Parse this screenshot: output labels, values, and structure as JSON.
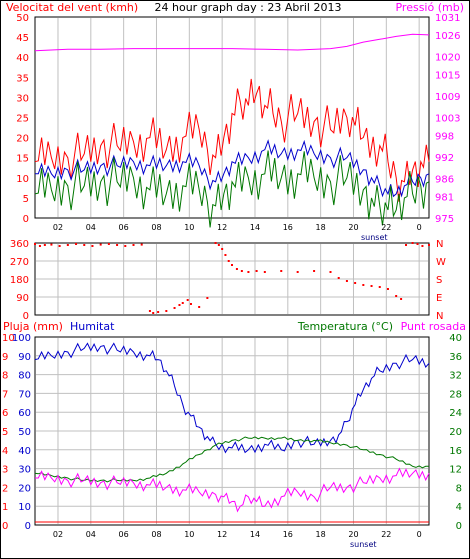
{
  "header": {
    "left_label": "Velocitat del vent (kmh)",
    "title": "24 hour graph day : 23 Abril 2013",
    "right_label": "Pressió (mb)"
  },
  "colors": {
    "red": "#ff0000",
    "blue": "#0000cc",
    "green": "#007700",
    "magenta": "#ff00ff",
    "grid": "#c0c0c0",
    "frame": "#000000",
    "sunset_label": "#000080"
  },
  "x_axis": {
    "tick_labels": [
      "02",
      "04",
      "06",
      "08",
      "10",
      "12",
      "14",
      "16",
      "18",
      "20",
      "22",
      "0"
    ],
    "sunset_label": "sunset"
  },
  "chart_data": [
    {
      "type": "line",
      "name": "wind-pressure",
      "y_ticks": [
        0,
        5,
        10,
        15,
        20,
        25,
        30,
        35,
        40,
        45,
        50
      ],
      "ylim": [
        0,
        50
      ],
      "y2_ticks": [
        975,
        981,
        986,
        992,
        998,
        1003,
        1009,
        1015,
        1020,
        1026,
        1031
      ],
      "y2lim": [
        975,
        1031
      ],
      "series": [
        {
          "name": "gust",
          "x": [
            0,
            1,
            2,
            3,
            4,
            5,
            6,
            7,
            8,
            9,
            10,
            10.5,
            11,
            11.5,
            12,
            12.5,
            13,
            13.5,
            14,
            14.5,
            15,
            16,
            17,
            18,
            19,
            19.5,
            20,
            21,
            21.5,
            22,
            22.5,
            23,
            23.5,
            24
          ],
          "y": [
            14,
            15,
            15,
            16,
            18,
            18,
            19,
            20,
            17,
            20,
            22,
            17,
            15,
            20,
            26,
            29,
            28,
            31,
            28,
            26,
            24,
            26,
            24,
            22,
            25,
            23,
            20,
            18,
            14,
            10,
            9,
            12,
            14,
            14
          ]
        },
        {
          "name": "average",
          "x": [
            0,
            1,
            2,
            3,
            4,
            5,
            6,
            7,
            8,
            9,
            10,
            10.5,
            11,
            11.5,
            12,
            13,
            14,
            15,
            16,
            17,
            18,
            19,
            20,
            20.5,
            21,
            21.5,
            22,
            22.5,
            23,
            23.5,
            24
          ],
          "y": [
            11,
            11,
            12,
            12,
            13,
            13,
            14,
            13,
            13,
            14,
            13,
            10,
            9,
            11,
            14,
            15,
            17,
            16,
            17,
            16,
            15,
            15,
            12,
            10,
            8,
            6,
            6,
            8,
            9,
            10,
            11
          ]
        },
        {
          "name": "lull",
          "x": [
            0,
            1,
            2,
            3,
            4,
            5,
            6,
            7,
            8,
            9,
            10,
            10.5,
            11,
            11.5,
            12,
            13,
            14,
            15,
            16,
            17,
            18,
            19,
            20,
            20.5,
            21,
            21.5,
            22,
            22.5,
            23,
            23.5,
            24
          ],
          "y": [
            6,
            7,
            8,
            8,
            9,
            9,
            10,
            7,
            6,
            8,
            7,
            4,
            3,
            6,
            9,
            10,
            11,
            10,
            11,
            10,
            9,
            10,
            7,
            5,
            3,
            2,
            2,
            5,
            6,
            8,
            9
          ]
        },
        {
          "name": "pressure",
          "axis": "right",
          "x": [
            0,
            2,
            4,
            6,
            8,
            10,
            12,
            14,
            16,
            18,
            19,
            20,
            21,
            22,
            23,
            24
          ],
          "y": [
            1021.6,
            1022.0,
            1022.0,
            1022.2,
            1022.2,
            1022.2,
            1022.2,
            1022.0,
            1021.8,
            1022.2,
            1022.8,
            1024.0,
            1024.8,
            1025.6,
            1026.2,
            1026.0
          ]
        }
      ]
    },
    {
      "type": "scatter",
      "name": "wind-direction",
      "y_ticks": [
        0,
        90,
        180,
        270,
        360
      ],
      "ylim": [
        0,
        360
      ],
      "y2_labels": [
        "N",
        "W",
        "S",
        "E",
        "N"
      ],
      "points": [
        [
          0,
          355
        ],
        [
          0.3,
          345
        ],
        [
          0.6,
          350
        ],
        [
          1,
          352
        ],
        [
          1.5,
          345
        ],
        [
          2,
          350
        ],
        [
          2.5,
          355
        ],
        [
          3,
          350
        ],
        [
          3.5,
          345
        ],
        [
          4,
          352
        ],
        [
          4.5,
          355
        ],
        [
          5,
          350
        ],
        [
          5.5,
          345
        ],
        [
          6,
          350
        ],
        [
          6.5,
          352
        ],
        [
          7,
          20
        ],
        [
          7.2,
          10
        ],
        [
          7.5,
          15
        ],
        [
          8,
          20
        ],
        [
          8.5,
          35
        ],
        [
          8.8,
          50
        ],
        [
          9,
          60
        ],
        [
          9.3,
          75
        ],
        [
          9.5,
          55
        ],
        [
          10,
          40
        ],
        [
          10.5,
          85
        ],
        [
          11,
          360
        ],
        [
          11.2,
          350
        ],
        [
          11.4,
          330
        ],
        [
          11.6,
          300
        ],
        [
          11.8,
          270
        ],
        [
          12,
          250
        ],
        [
          12.3,
          230
        ],
        [
          12.6,
          220
        ],
        [
          13,
          215
        ],
        [
          13.5,
          220
        ],
        [
          14,
          215
        ],
        [
          15,
          220
        ],
        [
          16,
          215
        ],
        [
          17,
          220
        ],
        [
          18,
          215
        ],
        [
          18.5,
          185
        ],
        [
          19,
          170
        ],
        [
          19.5,
          160
        ],
        [
          20,
          150
        ],
        [
          20.5,
          145
        ],
        [
          21,
          140
        ],
        [
          21.5,
          130
        ],
        [
          22,
          95
        ],
        [
          22.3,
          80
        ],
        [
          22.6,
          350
        ],
        [
          23,
          360
        ],
        [
          23.3,
          355
        ],
        [
          23.6,
          345
        ],
        [
          24,
          350
        ]
      ]
    },
    {
      "type": "line",
      "name": "rain-humidity-temp",
      "y_labels_left": {
        "label_rain": "Pluja (mm)",
        "label_hum": "Humitat",
        "rain_ticks": [
          0,
          1,
          2,
          3,
          4,
          5,
          6,
          7,
          8,
          9,
          10
        ],
        "hum_ticks": [
          0,
          10,
          20,
          30,
          40,
          50,
          60,
          70,
          80,
          90,
          100
        ]
      },
      "y_labels_right": {
        "label_temp": "Temperatura (°C)",
        "label_dew": "Punt rosada",
        "temp_ticks": [
          0,
          4,
          8,
          12,
          16,
          20,
          24,
          28,
          32,
          36,
          40
        ]
      },
      "series": [
        {
          "name": "humidity",
          "x": [
            0,
            1,
            2,
            3,
            4,
            5,
            6,
            7,
            7.5,
            8,
            8.5,
            9,
            9.5,
            10,
            10.5,
            11,
            12,
            13,
            14,
            15,
            16,
            17,
            18,
            18.5,
            19,
            19.5,
            20,
            20.5,
            21,
            22,
            23,
            24
          ],
          "y": [
            88,
            90,
            92,
            94,
            95,
            93,
            92,
            90,
            88,
            82,
            74,
            64,
            58,
            52,
            47,
            43,
            41,
            40,
            43,
            40,
            45,
            43,
            45,
            48,
            55,
            64,
            72,
            78,
            82,
            86,
            88,
            86
          ]
        },
        {
          "name": "temperature",
          "x": [
            0,
            1,
            2,
            3,
            4,
            5,
            6,
            7,
            8,
            9,
            10,
            10.5,
            11,
            12,
            13,
            14,
            15,
            16,
            17,
            18,
            19,
            20,
            21,
            22,
            23,
            24
          ],
          "y": [
            11,
            10.5,
            10,
            9.5,
            9.5,
            9.5,
            9.5,
            10,
            11,
            13,
            15,
            16,
            17,
            18,
            18.5,
            18.5,
            18.5,
            18,
            18,
            17.5,
            17,
            16,
            15,
            14,
            12.5,
            12.5
          ]
        },
        {
          "name": "dewpoint",
          "x": [
            0,
            1,
            2,
            3,
            4,
            5,
            6,
            7,
            8,
            9,
            10,
            11,
            11.5,
            12,
            12.5,
            13,
            13.5,
            14,
            15,
            16,
            17,
            18,
            19,
            20,
            21,
            22,
            23,
            24
          ],
          "y": [
            10,
            10,
            9.5,
            9.5,
            9,
            9,
            9,
            8.5,
            8,
            7.5,
            7,
            6.5,
            6,
            5,
            4,
            6,
            5,
            4,
            6,
            7,
            6,
            8,
            8,
            9,
            10,
            10.5,
            11,
            11
          ]
        },
        {
          "name": "rain",
          "x": [
            0,
            24
          ],
          "y": [
            0,
            0
          ]
        }
      ]
    }
  ]
}
